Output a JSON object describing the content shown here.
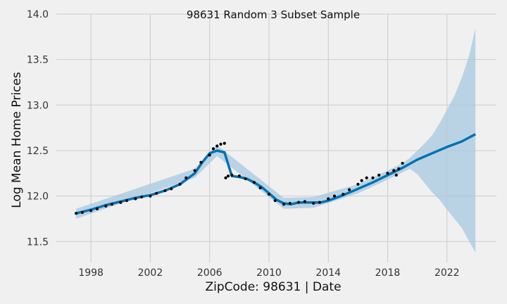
{
  "chart_data": {
    "type": "line",
    "title": "98631 Random 3 Subset Sample",
    "xlabel": "ZipCode: 98631 | Date",
    "ylabel": "Log Mean Home Prices",
    "xlim": [
      "1995-09-01",
      "2025-05-01"
    ],
    "ylim": [
      11.27,
      14.0
    ],
    "xticks": [
      "1998",
      "2002",
      "2006",
      "2010",
      "2014",
      "2018",
      "2022"
    ],
    "yticks": [
      "11.5",
      "12.0",
      "12.5",
      "13.0",
      "13.5",
      "14.0"
    ],
    "grid": true,
    "legend": "none",
    "colors": {
      "background": "#f0f0f0",
      "grid": "#cbcbcb",
      "forecast": "#0072b2",
      "interval": "#a8c9e0",
      "observed": "#000000"
    },
    "series": [
      {
        "name": "",
        "role": "observed",
        "x": [
          "1997-01",
          "1997-06",
          "1998-01",
          "1998-06",
          "1999-01",
          "1999-06",
          "2000-01",
          "2000-06",
          "2001-01",
          "2001-06",
          "2002-01",
          "2002-06",
          "2003-01",
          "2003-06",
          "2004-01",
          "2004-06",
          "2005-01",
          "2005-06",
          "2006-01",
          "2006-04",
          "2006-07",
          "2006-10",
          "2007-01",
          "2007-02",
          "2007-04",
          "2007-07",
          "2008-01",
          "2008-06",
          "2009-01",
          "2009-06",
          "2010-01",
          "2010-06",
          "2011-01",
          "2011-06",
          "2012-01",
          "2012-06",
          "2013-01",
          "2013-06",
          "2014-01",
          "2014-06",
          "2015-01",
          "2015-06",
          "2016-01",
          "2016-04",
          "2016-08",
          "2017-01",
          "2017-06",
          "2018-01",
          "2018-06",
          "2018-08",
          "2018-10",
          "2019-01"
        ],
        "values": [
          11.81,
          11.82,
          11.84,
          11.86,
          11.89,
          11.91,
          11.93,
          11.95,
          11.97,
          11.99,
          12.0,
          12.03,
          12.06,
          12.08,
          12.13,
          12.2,
          12.28,
          12.37,
          12.45,
          12.52,
          12.55,
          12.57,
          12.58,
          12.2,
          12.22,
          12.23,
          12.22,
          12.19,
          12.15,
          12.09,
          12.02,
          11.95,
          11.91,
          11.92,
          11.93,
          11.94,
          11.92,
          11.93,
          11.97,
          12.0,
          12.02,
          12.07,
          12.13,
          12.17,
          12.2,
          12.2,
          12.23,
          12.25,
          12.28,
          12.23,
          12.3,
          12.36
        ]
      },
      {
        "name": "",
        "role": "forecast",
        "x": [
          "1997-01",
          "1998-01",
          "1999-01",
          "2000-01",
          "2001-01",
          "2002-01",
          "2003-01",
          "2004-01",
          "2005-01",
          "2005-07",
          "2006-01",
          "2006-07",
          "2007-01",
          "2007-04",
          "2007-07",
          "2008-01",
          "2008-07",
          "2009-01",
          "2009-07",
          "2010-01",
          "2010-07",
          "2011-01",
          "2011-07",
          "2012-01",
          "2013-01",
          "2013-07",
          "2014-01",
          "2014-07",
          "2015-01",
          "2016-01",
          "2017-01",
          "2018-01",
          "2019-01",
          "2020-01",
          "2021-01",
          "2022-01",
          "2023-01",
          "2023-12"
        ],
        "values": [
          11.81,
          11.85,
          11.9,
          11.94,
          11.98,
          12.01,
          12.06,
          12.13,
          12.25,
          12.37,
          12.47,
          12.5,
          12.48,
          12.35,
          12.22,
          12.21,
          12.19,
          12.15,
          12.1,
          12.03,
          11.96,
          11.92,
          11.91,
          11.93,
          11.93,
          11.93,
          11.95,
          11.98,
          12.01,
          12.08,
          12.15,
          12.23,
          12.31,
          12.4,
          12.47,
          12.54,
          12.6,
          12.68
        ]
      },
      {
        "name": "",
        "role": "uncertainty_interval",
        "x": [
          "1997-01",
          "2005-01",
          "2006-07",
          "2011-01",
          "2013-01",
          "2016-01",
          "2018-01",
          "2019-01",
          "2019-07",
          "2020-01",
          "2020-07",
          "2021-01",
          "2021-07",
          "2022-01",
          "2022-07",
          "2023-01",
          "2023-07",
          "2023-12"
        ],
        "upper": [
          11.86,
          12.3,
          12.56,
          11.98,
          11.99,
          12.13,
          12.28,
          12.36,
          12.42,
          12.5,
          12.58,
          12.67,
          12.8,
          12.95,
          13.1,
          13.3,
          13.55,
          13.85
        ],
        "lower": [
          11.75,
          12.2,
          12.44,
          11.86,
          11.87,
          12.03,
          12.18,
          12.26,
          12.3,
          12.24,
          12.14,
          12.04,
          11.96,
          11.85,
          11.75,
          11.65,
          11.5,
          11.38
        ]
      }
    ]
  }
}
